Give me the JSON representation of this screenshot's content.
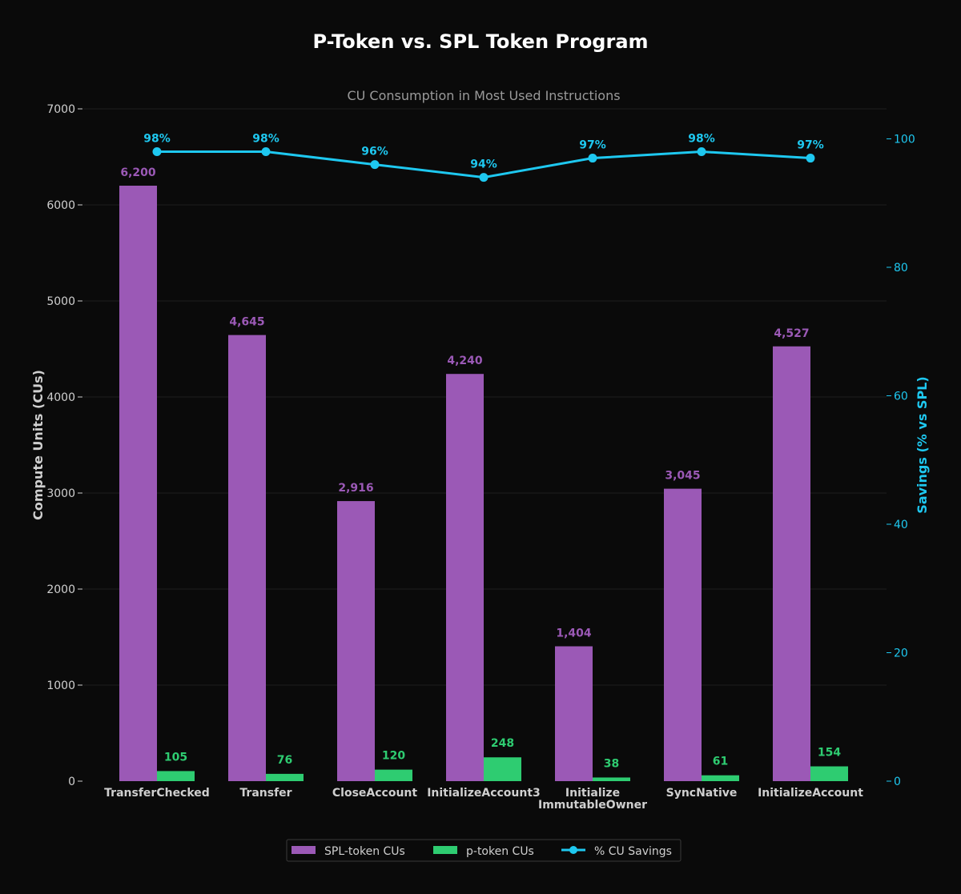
{
  "chart_data": {
    "type": "bar",
    "title": "P-Token vs. SPL Token Program",
    "subtitle": "CU Consumption in Most Used Instructions",
    "categories": [
      "TransferChecked",
      "Transfer",
      "CloseAccount",
      "InitializeAccount3",
      "Initialize\nImmutableOwner",
      "SyncNative",
      "InitializeAccount"
    ],
    "series": [
      {
        "name": "SPL-token CUs",
        "color": "#9b59b6",
        "values": [
          6200,
          4645,
          2916,
          4240,
          1404,
          3045,
          4527
        ],
        "labels": [
          "6,200",
          "4,645",
          "2,916",
          "4,240",
          "1,404",
          "3,045",
          "4,527"
        ]
      },
      {
        "name": "p-token CUs",
        "color": "#2ecc71",
        "values": [
          105,
          76,
          120,
          248,
          38,
          61,
          154
        ],
        "labels": [
          "105",
          "76",
          "120",
          "248",
          "38",
          "61",
          "154"
        ]
      },
      {
        "name": "% CU Savings",
        "color": "#1ec8f0",
        "type": "line",
        "axis": "right",
        "values": [
          98,
          98,
          96,
          94,
          97,
          98,
          97
        ],
        "labels": [
          "98%",
          "98%",
          "96%",
          "94%",
          "97%",
          "98%",
          "97%"
        ]
      }
    ],
    "ylabel": "Compute Units (CUs)",
    "ylabel_right": "Savings (% vs SPL)",
    "ylim": [
      0,
      7000
    ],
    "ylim_right": [
      0,
      104.67
    ],
    "yticks": [
      0,
      1000,
      2000,
      3000,
      4000,
      5000,
      6000,
      7000
    ],
    "yticks_right": [
      0,
      20,
      40,
      60,
      80,
      100
    ],
    "grid": true,
    "legend_position": "bottom-center"
  }
}
